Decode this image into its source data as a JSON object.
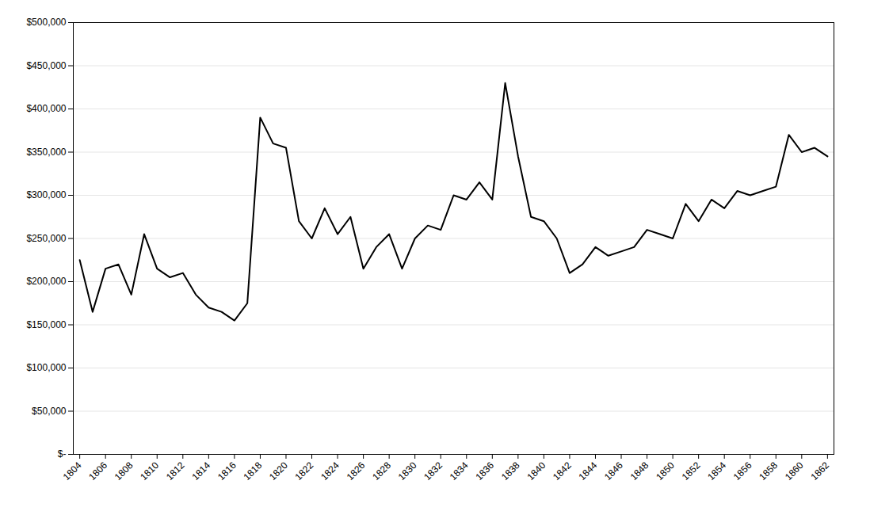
{
  "chart_data": {
    "type": "line",
    "x": [
      1804,
      1805,
      1806,
      1807,
      1808,
      1809,
      1810,
      1811,
      1812,
      1813,
      1814,
      1815,
      1816,
      1817,
      1818,
      1819,
      1820,
      1821,
      1822,
      1823,
      1824,
      1825,
      1826,
      1827,
      1828,
      1829,
      1830,
      1831,
      1832,
      1833,
      1834,
      1835,
      1836,
      1837,
      1838,
      1839,
      1840,
      1841,
      1842,
      1843,
      1844,
      1845,
      1846,
      1847,
      1848,
      1849,
      1850,
      1851,
      1852,
      1853,
      1854,
      1855,
      1856,
      1857,
      1858,
      1859,
      1860,
      1861,
      1862
    ],
    "values": [
      225000,
      165000,
      215000,
      220000,
      185000,
      255000,
      215000,
      205000,
      210000,
      185000,
      170000,
      165000,
      155000,
      175000,
      390000,
      360000,
      355000,
      270000,
      250000,
      285000,
      255000,
      275000,
      215000,
      240000,
      255000,
      215000,
      250000,
      265000,
      260000,
      300000,
      295000,
      315000,
      295000,
      430000,
      345000,
      275000,
      270000,
      250000,
      210000,
      220000,
      240000,
      230000,
      235000,
      240000,
      260000,
      255000,
      250000,
      290000,
      270000,
      295000,
      285000,
      305000,
      300000,
      305000,
      310000,
      370000,
      350000,
      355000,
      345000
    ],
    "color": "#000000",
    "xlim": [
      1803.5,
      1862.5
    ],
    "xticks": [
      1804,
      1806,
      1808,
      1810,
      1812,
      1814,
      1816,
      1818,
      1820,
      1822,
      1824,
      1826,
      1828,
      1830,
      1832,
      1834,
      1836,
      1838,
      1840,
      1842,
      1844,
      1846,
      1848,
      1850,
      1852,
      1854,
      1856,
      1858,
      1860,
      1862
    ],
    "ylim": [
      0,
      500000
    ],
    "yticks": [
      {
        "value": 0,
        "label": "$-"
      },
      {
        "value": 50000,
        "label": "$50,000"
      },
      {
        "value": 100000,
        "label": "$100,000"
      },
      {
        "value": 150000,
        "label": "$150,000"
      },
      {
        "value": 200000,
        "label": "$200,000"
      },
      {
        "value": 250000,
        "label": "$250,000"
      },
      {
        "value": 300000,
        "label": "$300,000"
      },
      {
        "value": 350000,
        "label": "$350,000"
      },
      {
        "value": 400000,
        "label": "$400,000"
      },
      {
        "value": 450000,
        "label": "$450,000"
      },
      {
        "value": 500000,
        "label": "$500,000"
      }
    ],
    "grid": "y"
  }
}
